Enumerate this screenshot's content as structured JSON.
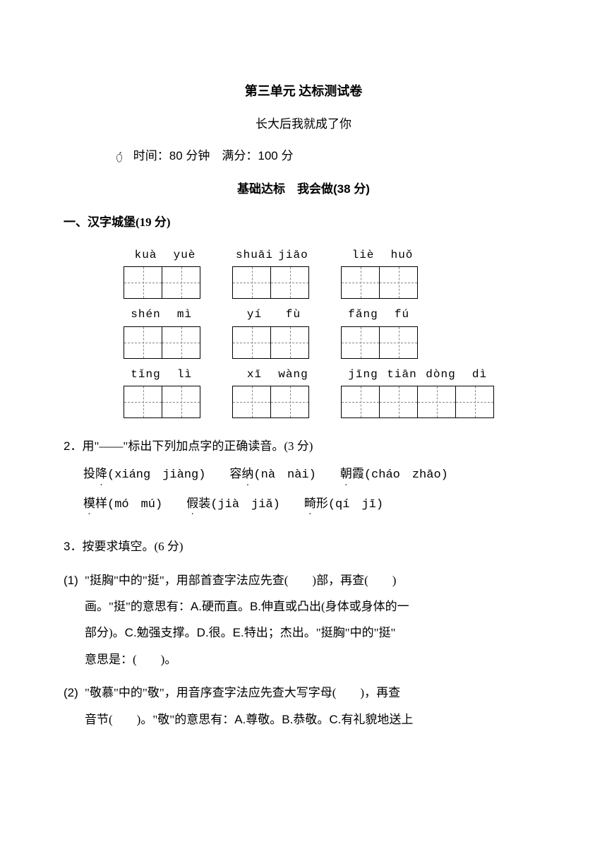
{
  "header": {
    "title": "第三单元  达标测试卷",
    "subtitle": "长大后我就成了你",
    "time_label": "时间：",
    "time_value": "80",
    "time_unit": "分钟",
    "score_label": "满分：",
    "score_value": "100",
    "score_unit": "分"
  },
  "section_title_prefix": "基础达标　我会做",
  "section_title_points": "(38 分)",
  "q1": {
    "heading": "一、汉字城堡(19 分)",
    "rows": [
      {
        "groups": [
          {
            "pinyin": [
              "kuà",
              "yuè"
            ],
            "cells": 2
          },
          {
            "pinyin": [
              "shuāi",
              "jiāo"
            ],
            "cells": 2
          },
          {
            "pinyin": [
              "liè",
              "huǒ"
            ],
            "cells": 2
          }
        ]
      },
      {
        "groups": [
          {
            "pinyin": [
              "shén",
              "mì"
            ],
            "cells": 2
          },
          {
            "pinyin": [
              "yí",
              "fù"
            ],
            "cells": 2
          },
          {
            "pinyin": [
              "fǎng",
              "fú"
            ],
            "cells": 2
          }
        ]
      },
      {
        "groups": [
          {
            "pinyin": [
              "tǐng",
              "lì"
            ],
            "cells": 2
          },
          {
            "pinyin": [
              "xī",
              "wàng"
            ],
            "cells": 2
          },
          {
            "pinyin": [
              "jīng",
              "tiān",
              "dòng",
              "dì"
            ],
            "cells": 4
          }
        ]
      }
    ]
  },
  "q2": {
    "num": "2．",
    "instruction": "用\"——\"标出下列加点字的正确读音。(3 分)",
    "items_line1": [
      {
        "pre": "投",
        "dot": "降",
        "reading": "(xiáng　jiàng)"
      },
      {
        "pre": "容",
        "dot": "纳",
        "reading": "(nà　nài)"
      },
      {
        "pre": "",
        "dot": "朝",
        "post": "霞",
        "reading": "(cháo　zhāo)"
      }
    ],
    "items_line2": [
      {
        "pre": "",
        "dot": "模",
        "post": "样",
        "reading": "(mó　mú)"
      },
      {
        "pre": "",
        "dot": "假",
        "post": "装",
        "reading": "(jià　jiǎ)"
      },
      {
        "pre": "",
        "dot": "畸",
        "post": "形",
        "reading": "(qí　jī)"
      }
    ]
  },
  "q3": {
    "num": "3．",
    "instruction": "按要求填空。(6 分)"
  },
  "q3_1": {
    "num": "(1)",
    "text_parts": [
      "\"挺胸\"中的\"挺\"，用部首查字法应先查(　　)部，再查(　　)",
      "画。\"挺\"的意思有：",
      "硬而直。",
      "伸直或凸出(身体或身体的一",
      "部分)。",
      "勉强支撑。",
      "很。",
      "特出；杰出。\"挺胸\"中的\"挺\"",
      "意思是：(　　)。"
    ],
    "opts": [
      "A.",
      "B.",
      "C.",
      "D.",
      "E."
    ]
  },
  "q3_2": {
    "num": "(2)",
    "text_parts": [
      "\"敬慕\"中的\"敬\"，用音序查字法应先查大写字母(　　)，再查",
      "音节(　　)。\"敬\"的意思有：",
      "尊敬。",
      "恭敬。",
      "有礼貌地送上"
    ],
    "opts": [
      "A.",
      "B.",
      "C."
    ]
  },
  "colors": {
    "text": "#000000",
    "background": "#ffffff",
    "dash": "#888888"
  }
}
